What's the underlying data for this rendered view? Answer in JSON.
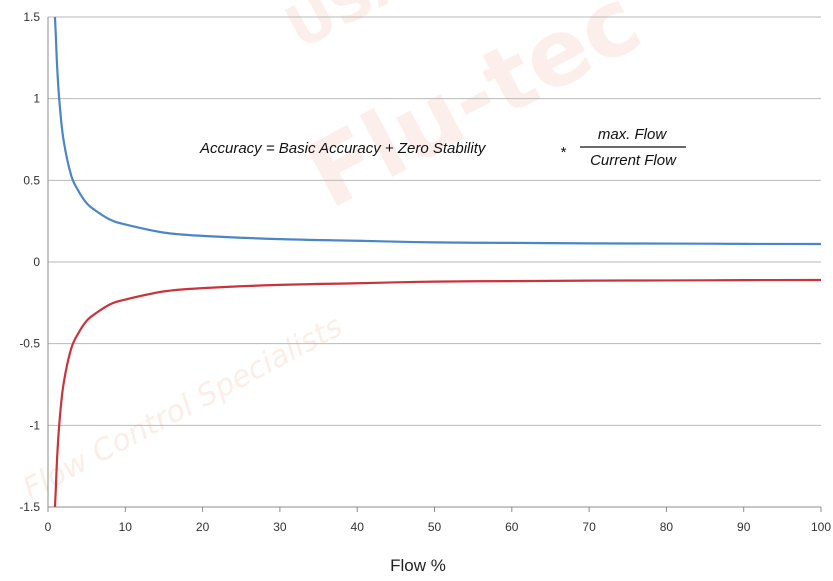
{
  "chart_data": {
    "type": "line",
    "title": "",
    "xlabel": "Flow %",
    "ylabel": "",
    "xlim": [
      0,
      100
    ],
    "ylim": [
      -1.5,
      1.5
    ],
    "x_ticks": [
      0,
      10,
      20,
      30,
      40,
      50,
      60,
      70,
      80,
      90,
      100
    ],
    "y_ticks": [
      1.5,
      1,
      0.5,
      0,
      -0.5,
      -1,
      -1.5
    ],
    "y_tick_labels": [
      "1.5",
      "1",
      "0.5",
      "0",
      "-0.5",
      "-1",
      "-1.5"
    ],
    "x_tick_labels": [
      "0",
      "10",
      "20",
      "30",
      "40",
      "50",
      "60",
      "70",
      "80",
      "90",
      "100"
    ],
    "grid": "horizontal",
    "series": [
      {
        "color": "#4a86c5",
        "x": [
          0.9,
          1,
          1.2,
          1.5,
          2,
          3,
          4,
          5,
          6,
          8,
          10,
          15,
          20,
          30,
          40,
          50,
          60,
          70,
          80,
          90,
          100
        ],
        "y": [
          1.5,
          1.4,
          1.18,
          0.97,
          0.75,
          0.53,
          0.43,
          0.36,
          0.32,
          0.26,
          0.23,
          0.18,
          0.16,
          0.14,
          0.13,
          0.12,
          0.117,
          0.114,
          0.113,
          0.111,
          0.11
        ]
      },
      {
        "color": "#c8343b",
        "x": [
          0.9,
          1,
          1.2,
          1.5,
          2,
          3,
          4,
          5,
          6,
          8,
          10,
          15,
          20,
          30,
          40,
          50,
          60,
          70,
          80,
          90,
          100
        ],
        "y": [
          -1.5,
          -1.4,
          -1.18,
          -0.97,
          -0.75,
          -0.53,
          -0.43,
          -0.36,
          -0.32,
          -0.26,
          -0.23,
          -0.18,
          -0.16,
          -0.14,
          -0.13,
          -0.12,
          -0.117,
          -0.114,
          -0.113,
          -0.111,
          -0.11
        ]
      }
    ],
    "annotation": {
      "lhs": "Accuracy = Basic Accuracy + Zero Stability",
      "operator": "*",
      "numerator": "max. Flow",
      "denominator": "Current Flow"
    }
  },
  "watermark": {
    "line1": "USA",
    "line2": "Flu-tec",
    "line3": "Flow Control Specialists"
  }
}
